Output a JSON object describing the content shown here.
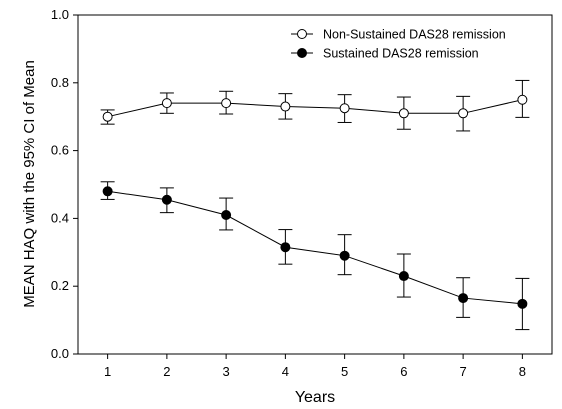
{
  "chart_data": {
    "type": "line",
    "title": "",
    "xlabel": "Years",
    "ylabel": "MEAN HAQ with the 95% CI of Mean",
    "xlim": [
      0.5,
      8.5
    ],
    "ylim": [
      0.0,
      1.0
    ],
    "x": [
      1,
      2,
      3,
      4,
      5,
      6,
      7,
      8
    ],
    "x_ticks": [
      "1",
      "2",
      "3",
      "4",
      "5",
      "6",
      "7",
      "8"
    ],
    "y_ticks": [
      "0.0",
      "0.2",
      "0.4",
      "0.6",
      "0.8",
      "1.0"
    ],
    "grid": false,
    "legend": "top-right",
    "series": [
      {
        "name": "Non-Sustained DAS28 remission",
        "marker": "open-circle",
        "color": "#000000",
        "values": [
          0.7,
          0.74,
          0.74,
          0.73,
          0.725,
          0.71,
          0.71,
          0.75
        ],
        "ci_low": [
          0.678,
          0.71,
          0.708,
          0.693,
          0.683,
          0.663,
          0.658,
          0.698
        ],
        "ci_high": [
          0.72,
          0.77,
          0.775,
          0.768,
          0.765,
          0.758,
          0.76,
          0.807
        ]
      },
      {
        "name": "Sustained DAS28 remission",
        "marker": "filled-circle",
        "color": "#000000",
        "values": [
          0.48,
          0.455,
          0.41,
          0.315,
          0.29,
          0.23,
          0.165,
          0.148
        ],
        "ci_low": [
          0.456,
          0.417,
          0.366,
          0.265,
          0.234,
          0.168,
          0.108,
          0.072
        ],
        "ci_high": [
          0.508,
          0.49,
          0.46,
          0.367,
          0.352,
          0.295,
          0.225,
          0.223
        ]
      }
    ]
  }
}
